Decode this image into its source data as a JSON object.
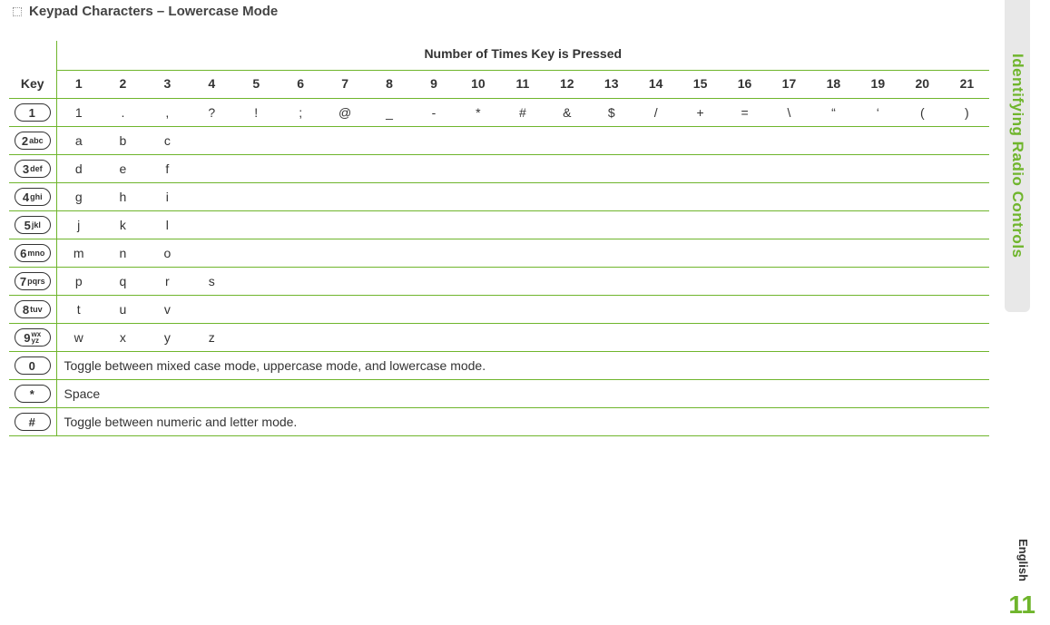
{
  "title": "Keypad Characters – Lowercase Mode",
  "header_group": "Number of Times Key is Pressed",
  "key_header": "Key",
  "columns": [
    "1",
    "2",
    "3",
    "4",
    "5",
    "6",
    "7",
    "8",
    "9",
    "10",
    "11",
    "12",
    "13",
    "14",
    "15",
    "16",
    "17",
    "18",
    "19",
    "20",
    "21"
  ],
  "rows": [
    {
      "keycap_digit": "1",
      "keycap_letters": "",
      "chars": [
        "1",
        ".",
        ",",
        "?",
        "!",
        ";",
        "@",
        "_",
        "-",
        "*",
        "#",
        "&",
        "$",
        "/",
        "+",
        "=",
        "\\",
        "“",
        "‘",
        "(",
        ")"
      ]
    },
    {
      "keycap_digit": "2",
      "keycap_letters": "abc",
      "chars": [
        "a",
        "b",
        "c"
      ]
    },
    {
      "keycap_digit": "3",
      "keycap_letters": "def",
      "chars": [
        "d",
        "e",
        "f"
      ]
    },
    {
      "keycap_digit": "4",
      "keycap_letters": "ghi",
      "chars": [
        "g",
        "h",
        "i"
      ]
    },
    {
      "keycap_digit": "5",
      "keycap_letters": "jkl",
      "chars": [
        "j",
        "k",
        "l"
      ]
    },
    {
      "keycap_digit": "6",
      "keycap_letters": "mno",
      "chars": [
        "m",
        "n",
        "o"
      ]
    },
    {
      "keycap_digit": "7",
      "keycap_letters": "pqrs",
      "chars": [
        "p",
        "q",
        "r",
        "s"
      ]
    },
    {
      "keycap_digit": "8",
      "keycap_letters": "tuv",
      "chars": [
        "t",
        "u",
        "v"
      ]
    },
    {
      "keycap_digit": "9",
      "keycap_letters": "wx yz",
      "wxyz": true,
      "chars": [
        "w",
        "x",
        "y",
        "z"
      ]
    }
  ],
  "special_rows": [
    {
      "keycap_digit": "0",
      "keycap_letters": "",
      "text": "Toggle between mixed case mode, uppercase mode, and lowercase mode."
    },
    {
      "keycap_digit": "*",
      "keycap_letters": "",
      "text": "Space"
    },
    {
      "keycap_digit": "#",
      "keycap_letters": "",
      "text": "Toggle between numeric and letter mode."
    }
  ],
  "side_tab": "Identifying Radio Controls",
  "language_label": "English",
  "page_number": "11",
  "colors": {
    "accent": "#6fb52c",
    "text": "#333333",
    "background": "#ffffff",
    "tab_bg": "#e8e8e8"
  }
}
